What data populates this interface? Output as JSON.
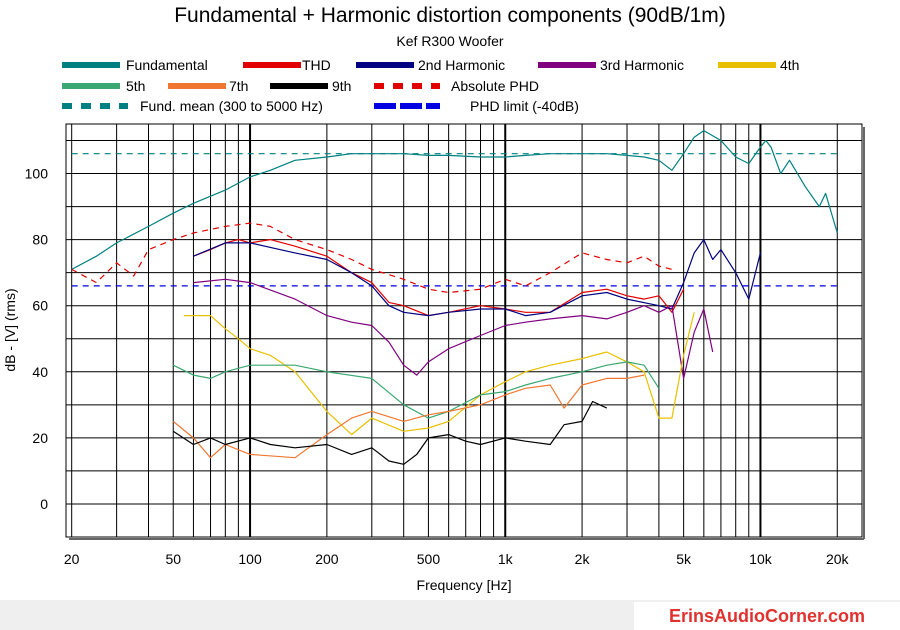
{
  "chart_data": {
    "type": "line",
    "title": "Fundamental + Harmonic distortion components (90dB/1m)",
    "subtitle": "Kef R300 Woofer",
    "xlabel": "Frequency [Hz]",
    "ylabel": "dB - [V] (rms)",
    "xscale": "log",
    "xlim": [
      19,
      25000
    ],
    "ylim": [
      -10,
      115
    ],
    "x_ticks": [
      20,
      50,
      100,
      200,
      500,
      1000,
      2000,
      5000,
      10000,
      20000
    ],
    "x_tick_labels": [
      "20",
      "50",
      "100",
      "200",
      "500",
      "1k",
      "2k",
      "5k",
      "10k",
      "20k"
    ],
    "y_ticks": [
      0,
      20,
      40,
      60,
      80,
      100
    ],
    "y_tick_labels": [
      "0",
      "20",
      "40",
      "60",
      "80",
      "100"
    ],
    "grid": true,
    "legend_position": "top",
    "series": [
      {
        "name": "Fundamental",
        "color": "#008080",
        "dash": "solid",
        "x": [
          20,
          25,
          30,
          40,
          50,
          60,
          80,
          100,
          120,
          150,
          200,
          250,
          300,
          400,
          500,
          600,
          800,
          1000,
          1200,
          1500,
          2000,
          2500,
          3000,
          3500,
          4000,
          4500,
          5000,
          5500,
          6000,
          7000,
          8000,
          9000,
          10000,
          10500,
          11000,
          12000,
          13000,
          15000,
          17000,
          18000,
          20000
        ],
        "y": [
          71,
          75,
          79,
          84,
          88,
          91,
          95,
          99,
          101,
          104,
          105,
          106,
          106,
          106,
          105.5,
          105.5,
          105,
          105,
          105.5,
          106,
          106,
          106,
          105.5,
          105,
          104,
          101,
          106,
          111,
          113,
          110,
          105,
          103,
          108,
          110,
          108,
          100,
          104,
          96,
          90,
          94,
          82
        ]
      },
      {
        "name": "THD",
        "color": "#e00000",
        "dash": "solid",
        "x": [
          60,
          70,
          80,
          90,
          100,
          120,
          150,
          200,
          250,
          300,
          350,
          400,
          500,
          600,
          800,
          1000,
          1200,
          1500,
          2000,
          2500,
          3000,
          3500,
          4000,
          4500,
          5000
        ],
        "y": [
          75,
          77,
          79,
          80,
          79,
          80,
          78,
          75,
          70,
          67,
          61,
          60,
          57,
          58,
          60,
          59,
          58,
          58,
          64,
          65,
          63,
          62,
          63,
          58,
          65
        ]
      },
      {
        "name": "2nd Harmonic",
        "color": "#000080",
        "dash": "solid",
        "x": [
          60,
          80,
          100,
          150,
          200,
          250,
          300,
          350,
          400,
          500,
          600,
          800,
          1000,
          1200,
          1500,
          2000,
          2500,
          3000,
          4000,
          4500,
          5000,
          5500,
          6000,
          6500,
          7000,
          8000,
          9000,
          10000
        ],
        "y": [
          75,
          79,
          79,
          76,
          74,
          70,
          66,
          60,
          58,
          57,
          58,
          59,
          59,
          57,
          58,
          63,
          64,
          62,
          60,
          59,
          67,
          76,
          80,
          74,
          77,
          70,
          62,
          76
        ]
      },
      {
        "name": "3rd Harmonic",
        "color": "#800080",
        "dash": "solid",
        "x": [
          60,
          80,
          100,
          150,
          200,
          250,
          300,
          350,
          400,
          450,
          500,
          600,
          800,
          1000,
          1200,
          1500,
          2000,
          2500,
          3000,
          3500,
          4000,
          4500,
          5000,
          5500,
          6000,
          6500
        ],
        "y": [
          67,
          68,
          67,
          62,
          57,
          55,
          54,
          49,
          42,
          39,
          43,
          47,
          51,
          54,
          55,
          56,
          57,
          56,
          58,
          60,
          58,
          60,
          38,
          52,
          59,
          46
        ]
      },
      {
        "name": "4th",
        "color": "#e8c000",
        "dash": "solid",
        "x": [
          55,
          70,
          80,
          90,
          100,
          120,
          150,
          200,
          250,
          300,
          400,
          500,
          600,
          800,
          1000,
          1200,
          1500,
          2000,
          2500,
          3000,
          3500,
          4000,
          4500,
          5000,
          5500
        ],
        "y": [
          57,
          57,
          53,
          50,
          47,
          45,
          40,
          28,
          21,
          26,
          22,
          23,
          25,
          33,
          37,
          40,
          42,
          44,
          46,
          43,
          40,
          26,
          26,
          45,
          58
        ]
      },
      {
        "name": "5th",
        "color": "#3aa870",
        "dash": "solid",
        "x": [
          50,
          60,
          70,
          80,
          100,
          150,
          200,
          300,
          400,
          500,
          600,
          800,
          1000,
          1200,
          1500,
          2000,
          2500,
          3000,
          3500,
          4000
        ],
        "y": [
          42,
          39,
          38,
          40,
          42,
          42,
          40,
          38,
          30,
          26,
          28,
          33,
          34,
          36,
          38,
          40,
          42,
          43,
          42,
          35
        ]
      },
      {
        "name": "7th",
        "color": "#f07830",
        "dash": "solid",
        "x": [
          50,
          60,
          70,
          80,
          100,
          150,
          200,
          250,
          300,
          400,
          500,
          600,
          800,
          1000,
          1200,
          1500,
          1700,
          2000,
          2500,
          3000,
          3500
        ],
        "y": [
          25,
          20,
          14,
          18,
          15,
          14,
          21,
          26,
          28,
          25,
          27,
          28,
          30,
          33,
          35,
          36,
          29,
          36,
          38,
          38,
          39
        ]
      },
      {
        "name": "9th",
        "color": "#000000",
        "dash": "solid",
        "x": [
          50,
          60,
          70,
          80,
          100,
          120,
          150,
          200,
          250,
          300,
          350,
          400,
          450,
          500,
          600,
          700,
          800,
          1000,
          1200,
          1500,
          1700,
          2000,
          2200,
          2500
        ],
        "y": [
          22,
          18,
          20,
          18,
          20,
          18,
          17,
          18,
          15,
          17,
          13,
          12,
          15,
          20,
          21,
          19,
          18,
          20,
          19,
          18,
          24,
          25,
          31,
          29
        ]
      },
      {
        "name": "Absolute PHD",
        "color": "#e00000",
        "dash": "dashed",
        "x": [
          20,
          25,
          30,
          35,
          40,
          50,
          60,
          80,
          100,
          120,
          150,
          200,
          250,
          300,
          400,
          500,
          600,
          800,
          1000,
          1200,
          1500,
          2000,
          2500,
          3000,
          3500,
          4000,
          4500
        ],
        "y": [
          71,
          67,
          73,
          69,
          77,
          80,
          82,
          84,
          85,
          84,
          80,
          77,
          74,
          71,
          68,
          65,
          64,
          65,
          68,
          66,
          70,
          76,
          74,
          73,
          75,
          72,
          71
        ]
      },
      {
        "name": "Fund. mean (300 to 5000 Hz)",
        "color": "#008080",
        "dash": "dashed",
        "x": [
          20,
          20000
        ],
        "y": [
          106,
          106
        ]
      },
      {
        "name": "PHD limit (-40dB)",
        "color": "#0000e0",
        "dash": "dashed",
        "x": [
          20,
          20000
        ],
        "y": [
          66,
          66
        ]
      }
    ]
  },
  "footer": {
    "brand": "ErinsAudioCorner.com"
  }
}
